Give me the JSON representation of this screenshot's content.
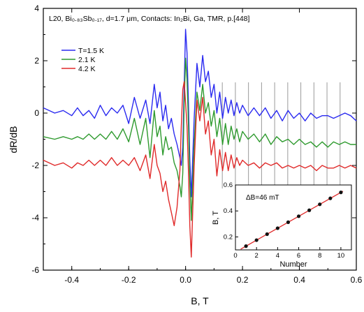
{
  "chart_data": [
    {
      "type": "line",
      "title": "",
      "annotation": "L20, Bi₀.₈₃Sb₀.₁₇, d=1.7 μm, Contacts: In₂Bi, Ga, TMR, p.[448]",
      "xlabel": "B, T",
      "ylabel": "dR/dB",
      "xlim": [
        -0.5,
        0.6
      ],
      "ylim": [
        -6,
        4
      ],
      "xticks": [
        -0.4,
        -0.2,
        0.0,
        0.2,
        0.4,
        0.6
      ],
      "yticks": [
        -6,
        -4,
        -2,
        0,
        2,
        4
      ],
      "xtick_labels": [
        "-0.4",
        "-0.2",
        "0.0",
        "0.2",
        "0.4",
        "0.6"
      ],
      "ytick_labels": [
        "-6",
        "-4",
        "-2",
        "0",
        "2",
        "4"
      ],
      "legend_placement": "top-left",
      "vertical_markers_x": [
        0.129,
        0.175,
        0.221,
        0.267,
        0.313,
        0.359,
        0.405,
        0.451,
        0.497,
        0.543
      ],
      "series": [
        {
          "name": "T=1.5 K",
          "color": "#2a2af0",
          "x": [
            -0.5,
            -0.46,
            -0.43,
            -0.4,
            -0.38,
            -0.36,
            -0.34,
            -0.32,
            -0.3,
            -0.28,
            -0.26,
            -0.24,
            -0.22,
            -0.2,
            -0.18,
            -0.16,
            -0.14,
            -0.125,
            -0.11,
            -0.1,
            -0.09,
            -0.08,
            -0.07,
            -0.06,
            -0.05,
            -0.04,
            -0.03,
            -0.02,
            -0.015,
            -0.01,
            -0.005,
            0.0,
            0.005,
            0.01,
            0.015,
            0.02,
            0.03,
            0.04,
            0.05,
            0.06,
            0.07,
            0.08,
            0.09,
            0.1,
            0.11,
            0.12,
            0.13,
            0.14,
            0.15,
            0.16,
            0.17,
            0.18,
            0.19,
            0.2,
            0.22,
            0.24,
            0.26,
            0.28,
            0.3,
            0.32,
            0.34,
            0.36,
            0.38,
            0.4,
            0.42,
            0.44,
            0.46,
            0.48,
            0.5,
            0.52,
            0.54,
            0.56,
            0.58,
            0.6
          ],
          "y": [
            0.2,
            0.0,
            0.1,
            -0.1,
            0.2,
            -0.1,
            0.1,
            -0.2,
            0.3,
            -0.1,
            0.2,
            0.0,
            0.3,
            -0.4,
            0.6,
            -0.2,
            0.5,
            -0.4,
            1.1,
            0.2,
            0.8,
            -0.3,
            0.3,
            -0.6,
            -0.2,
            -0.8,
            -1.2,
            -1.7,
            -2.0,
            -1.3,
            1.0,
            3.2,
            2.3,
            0.4,
            -1.8,
            -3.2,
            -0.2,
            1.9,
            1.0,
            2.2,
            1.2,
            1.6,
            0.6,
            1.1,
            0.0,
            0.8,
            -0.2,
            0.6,
            0.0,
            0.5,
            -0.1,
            0.4,
            0.0,
            0.3,
            -0.1,
            0.2,
            -0.1,
            0.2,
            -0.2,
            0.1,
            -0.3,
            0.1,
            -0.2,
            0.0,
            -0.3,
            0.0,
            -0.2,
            -0.1,
            -0.1,
            -0.2,
            -0.1,
            0.0,
            -0.1,
            -0.3
          ]
        },
        {
          "name": "2.1 K",
          "color": "#2e9a2e",
          "x": [
            -0.5,
            -0.46,
            -0.43,
            -0.4,
            -0.38,
            -0.36,
            -0.34,
            -0.32,
            -0.3,
            -0.28,
            -0.26,
            -0.24,
            -0.22,
            -0.2,
            -0.18,
            -0.16,
            -0.14,
            -0.125,
            -0.11,
            -0.1,
            -0.09,
            -0.08,
            -0.07,
            -0.06,
            -0.05,
            -0.04,
            -0.03,
            -0.02,
            -0.015,
            -0.01,
            -0.005,
            0.0,
            0.005,
            0.01,
            0.015,
            0.02,
            0.03,
            0.04,
            0.05,
            0.06,
            0.07,
            0.08,
            0.09,
            0.1,
            0.11,
            0.12,
            0.13,
            0.14,
            0.15,
            0.16,
            0.17,
            0.18,
            0.19,
            0.2,
            0.22,
            0.24,
            0.26,
            0.28,
            0.3,
            0.32,
            0.34,
            0.36,
            0.38,
            0.4,
            0.42,
            0.44,
            0.46,
            0.48,
            0.5,
            0.52,
            0.54,
            0.56,
            0.58,
            0.6
          ],
          "y": [
            -0.9,
            -1.0,
            -0.9,
            -1.0,
            -0.9,
            -1.0,
            -0.8,
            -1.0,
            -0.8,
            -1.0,
            -0.7,
            -1.0,
            -0.6,
            -1.1,
            -0.2,
            -1.2,
            -0.2,
            -1.7,
            0.1,
            -0.9,
            -0.5,
            -1.6,
            -0.9,
            -1.4,
            -1.3,
            -1.9,
            -2.2,
            -2.8,
            -3.2,
            -2.3,
            0.3,
            2.1,
            1.3,
            -0.4,
            -2.6,
            -4.1,
            -1.2,
            0.8,
            0.1,
            1.1,
            0.0,
            0.4,
            -0.5,
            0.1,
            -0.9,
            -0.2,
            -1.2,
            -0.4,
            -1.2,
            -0.5,
            -1.0,
            -0.6,
            -1.1,
            -0.7,
            -1.0,
            -0.8,
            -1.1,
            -0.8,
            -1.2,
            -0.9,
            -1.1,
            -1.0,
            -1.2,
            -1.0,
            -1.2,
            -1.1,
            -1.3,
            -1.1,
            -1.3,
            -1.1,
            -1.2,
            -1.1,
            -1.2,
            -1.2
          ]
        },
        {
          "name": "4.2 K",
          "color": "#e02a2a",
          "x": [
            -0.5,
            -0.46,
            -0.43,
            -0.4,
            -0.38,
            -0.36,
            -0.34,
            -0.32,
            -0.3,
            -0.28,
            -0.26,
            -0.24,
            -0.22,
            -0.2,
            -0.18,
            -0.16,
            -0.14,
            -0.125,
            -0.11,
            -0.1,
            -0.09,
            -0.08,
            -0.07,
            -0.06,
            -0.05,
            -0.04,
            -0.03,
            -0.02,
            -0.015,
            -0.01,
            -0.005,
            0.0,
            0.005,
            0.01,
            0.015,
            0.02,
            0.03,
            0.04,
            0.05,
            0.06,
            0.07,
            0.08,
            0.09,
            0.1,
            0.11,
            0.12,
            0.13,
            0.14,
            0.15,
            0.16,
            0.17,
            0.18,
            0.19,
            0.2,
            0.22,
            0.24,
            0.26,
            0.28,
            0.3,
            0.32,
            0.34,
            0.36,
            0.38,
            0.4,
            0.42,
            0.44,
            0.46,
            0.48,
            0.5,
            0.52,
            0.54,
            0.56,
            0.58,
            0.6
          ],
          "y": [
            -1.8,
            -2.0,
            -1.9,
            -2.1,
            -1.9,
            -2.0,
            -1.8,
            -2.0,
            -1.8,
            -2.0,
            -1.7,
            -2.0,
            -1.8,
            -2.0,
            -1.7,
            -2.2,
            -1.6,
            -2.5,
            -1.2,
            -2.0,
            -2.3,
            -3.0,
            -2.6,
            -3.3,
            -3.8,
            -4.3,
            -3.6,
            -2.2,
            -0.5,
            0.9,
            1.2,
            0.4,
            -0.5,
            -2.2,
            -4.3,
            -5.5,
            -2.0,
            0.5,
            -0.3,
            0.6,
            -0.8,
            -0.3,
            -1.6,
            -1.0,
            -2.4,
            -1.4,
            -2.2,
            -1.5,
            -2.2,
            -1.6,
            -2.1,
            -1.7,
            -2.0,
            -1.8,
            -2.0,
            -1.9,
            -2.1,
            -1.9,
            -2.0,
            -1.9,
            -2.1,
            -2.0,
            -2.1,
            -2.0,
            -2.1,
            -2.0,
            -2.2,
            -2.0,
            -2.1,
            -2.1,
            -2.0,
            -2.1,
            -2.0,
            -2.1
          ]
        }
      ]
    },
    {
      "type": "scatter",
      "annotation": "ΔB=46 mT",
      "xlabel": "Number",
      "ylabel": "B, T",
      "xlim": [
        0,
        11
      ],
      "ylim": [
        0.1,
        0.6
      ],
      "xticks": [
        0,
        2,
        4,
        6,
        8,
        10
      ],
      "yticks": [
        0.2,
        0.4,
        0.6
      ],
      "xtick_labels": [
        "0",
        "2",
        "4",
        "6",
        "8",
        "10"
      ],
      "ytick_labels": [
        "0.2",
        "0.4",
        "0.6"
      ],
      "x": [
        1,
        2,
        3,
        4,
        5,
        6,
        7,
        8,
        9,
        10
      ],
      "y": [
        0.129,
        0.175,
        0.221,
        0.267,
        0.313,
        0.359,
        0.405,
        0.451,
        0.497,
        0.543
      ],
      "fit_line": {
        "x": [
          0.5,
          10.2
        ],
        "y": [
          0.106,
          0.552
        ],
        "color": "#e02a2a"
      }
    }
  ]
}
